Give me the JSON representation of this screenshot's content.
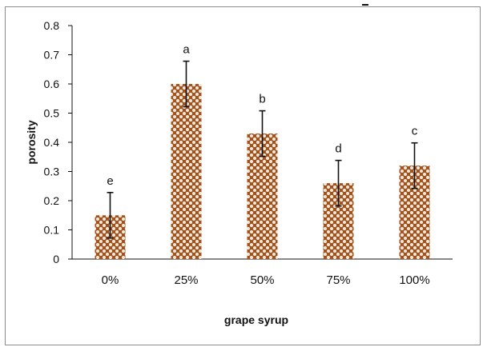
{
  "chart_data": {
    "type": "bar",
    "title": "",
    "xlabel": "grape syrup",
    "ylabel": "porosity",
    "ylim": [
      0,
      0.8
    ],
    "yticks": [
      "0",
      "0.1",
      "0.2",
      "0.3",
      "0.4",
      "0.5",
      "0.6",
      "0.7",
      "0.8"
    ],
    "grid": false,
    "categories": [
      "0%",
      "25%",
      "50%",
      "75%",
      "100%"
    ],
    "values": [
      0.15,
      0.6,
      0.43,
      0.26,
      0.32
    ],
    "errors": [
      0.078,
      0.078,
      0.078,
      0.078,
      0.078
    ],
    "letters": [
      "e",
      "a",
      "b",
      "d",
      "c"
    ],
    "bar_color": "#a0521e",
    "dot_color": "#f1e6d6"
  }
}
